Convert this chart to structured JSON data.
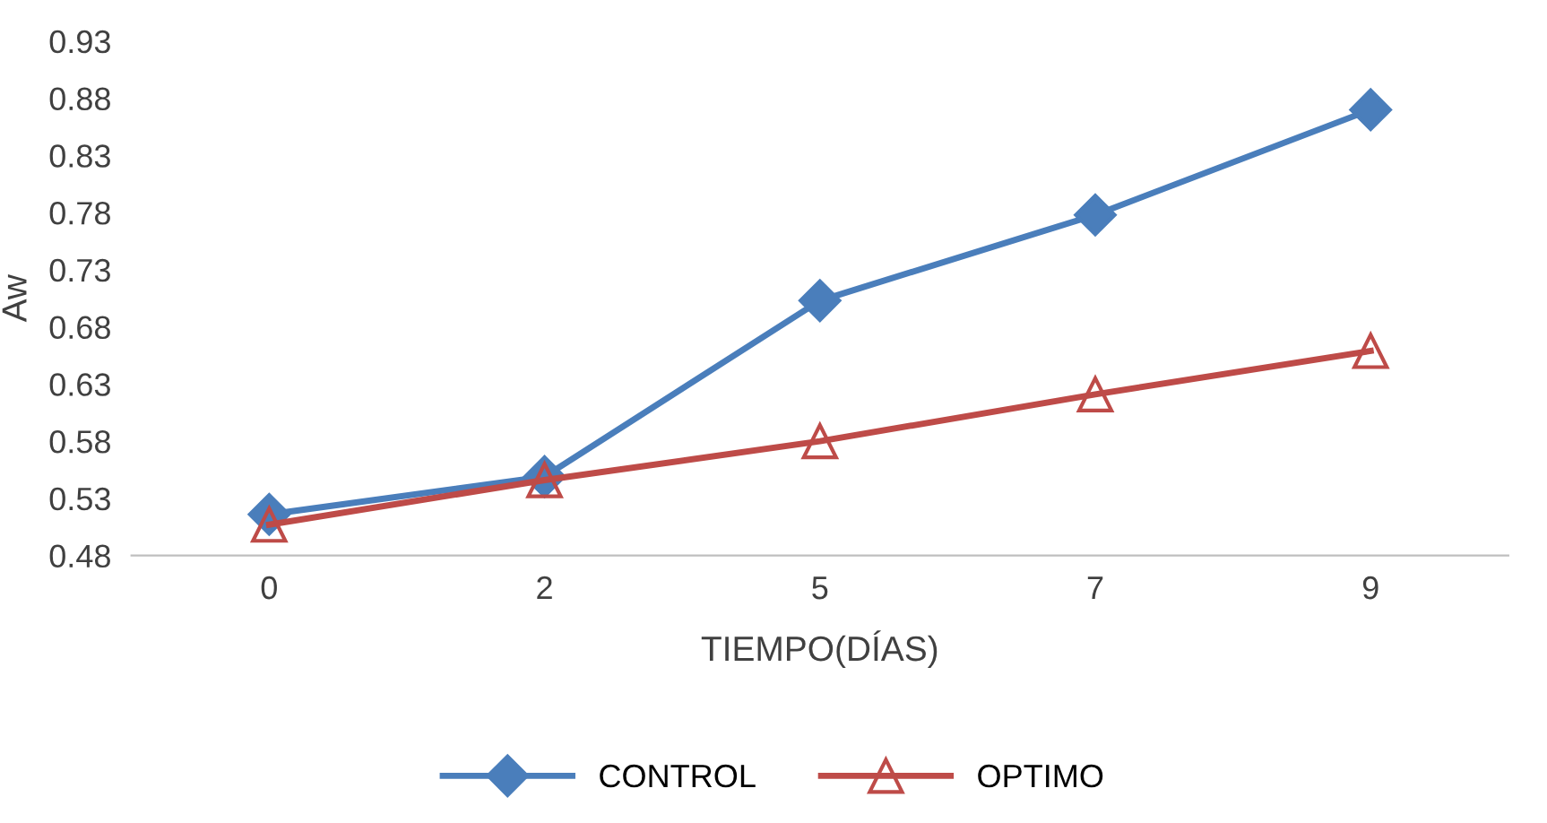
{
  "chart_data": {
    "type": "line",
    "xlabel": "TIEMPO(DÍAS)",
    "ylabel": "Aw",
    "categories": [
      "0",
      "2",
      "5",
      "7",
      "9"
    ],
    "series": [
      {
        "name": "CONTROL",
        "color": "#4a7ebb",
        "marker": "diamond",
        "values": [
          0.516,
          0.549,
          0.703,
          0.778,
          0.87
        ]
      },
      {
        "name": "OPTIMO",
        "color": "#be4b48",
        "marker": "triangle",
        "values": [
          0.507,
          0.546,
          0.58,
          0.621,
          0.659
        ]
      }
    ],
    "ylim": [
      0.48,
      0.93
    ],
    "yticks": [
      0.48,
      0.53,
      0.58,
      0.63,
      0.68,
      0.73,
      0.78,
      0.83,
      0.88,
      0.93
    ],
    "grid": false,
    "legend": "bottom",
    "line_style": "solid"
  }
}
